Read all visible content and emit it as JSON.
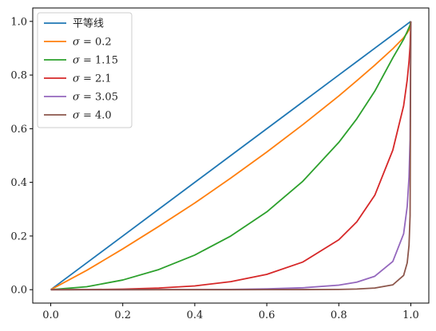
{
  "chart_data": {
    "type": "line",
    "title": "",
    "xlabel": "",
    "ylabel": "",
    "xlim": [
      -0.05,
      1.05
    ],
    "ylim": [
      -0.05,
      1.05
    ],
    "xticks": [
      0.0,
      0.2,
      0.4,
      0.6,
      0.8,
      1.0
    ],
    "yticks": [
      0.0,
      0.2,
      0.4,
      0.6,
      0.8,
      1.0
    ],
    "xtick_labels": [
      "0.0",
      "0.2",
      "0.4",
      "0.6",
      "0.8",
      "1.0"
    ],
    "ytick_labels": [
      "0.0",
      "0.2",
      "0.4",
      "0.6",
      "0.8",
      "1.0"
    ],
    "grid": false,
    "legend_position": "upper-left",
    "x": [
      0,
      0.1,
      0.2,
      0.3,
      0.4,
      0.5,
      0.6,
      0.7,
      0.8,
      0.85,
      0.9,
      0.95,
      0.98,
      0.99,
      0.995,
      0.998,
      1.0
    ],
    "series": [
      {
        "name": "平等线",
        "label_prefix": "",
        "label_text": "平等线",
        "color": "#1f77b4",
        "y": [
          0,
          0.1,
          0.2,
          0.3,
          0.4,
          0.5,
          0.6,
          0.7,
          0.8,
          0.85,
          0.9,
          0.95,
          0.98,
          0.99,
          0.995,
          0.998,
          1.0
        ]
      },
      {
        "name": "σ = 0.2",
        "label_prefix": "σ",
        "label_text": " = 0.2",
        "color": "#ff7f0e",
        "y": [
          0,
          0.072,
          0.152,
          0.236,
          0.323,
          0.416,
          0.513,
          0.615,
          0.722,
          0.779,
          0.837,
          0.898,
          0.939,
          0.957,
          0.968,
          0.979,
          1.0
        ]
      },
      {
        "name": "σ = 1.15",
        "label_prefix": "σ",
        "label_text": " = 1.15",
        "color": "#2ca02c",
        "y": [
          0,
          0.011,
          0.036,
          0.075,
          0.129,
          0.2,
          0.29,
          0.404,
          0.549,
          0.637,
          0.74,
          0.864,
          0.933,
          0.962,
          0.977,
          0.987,
          1.0
        ]
      },
      {
        "name": "σ = 2.1",
        "label_prefix": "σ",
        "label_text": " = 2.1",
        "color": "#d62728",
        "y": [
          0,
          0.0003,
          0.002,
          0.006,
          0.014,
          0.03,
          0.057,
          0.103,
          0.186,
          0.253,
          0.352,
          0.52,
          0.685,
          0.782,
          0.85,
          0.91,
          1.0
        ]
      },
      {
        "name": "σ = 3.05",
        "label_prefix": "σ",
        "label_text": " = 3.05",
        "color": "#9467bd",
        "y": [
          0,
          0.0,
          0.0,
          0.0001,
          0.0003,
          0.001,
          0.003,
          0.007,
          0.017,
          0.028,
          0.05,
          0.105,
          0.208,
          0.31,
          0.42,
          0.56,
          1.0
        ]
      },
      {
        "name": "σ = 4.0",
        "label_prefix": "σ",
        "label_text": " = 4.0",
        "color": "#8c564b",
        "y": [
          0,
          0.0,
          0.0,
          0.0,
          0.0,
          0.0,
          0.0001,
          0.0003,
          0.001,
          0.0025,
          0.006,
          0.018,
          0.053,
          0.1,
          0.165,
          0.275,
          1.0
        ]
      }
    ]
  }
}
